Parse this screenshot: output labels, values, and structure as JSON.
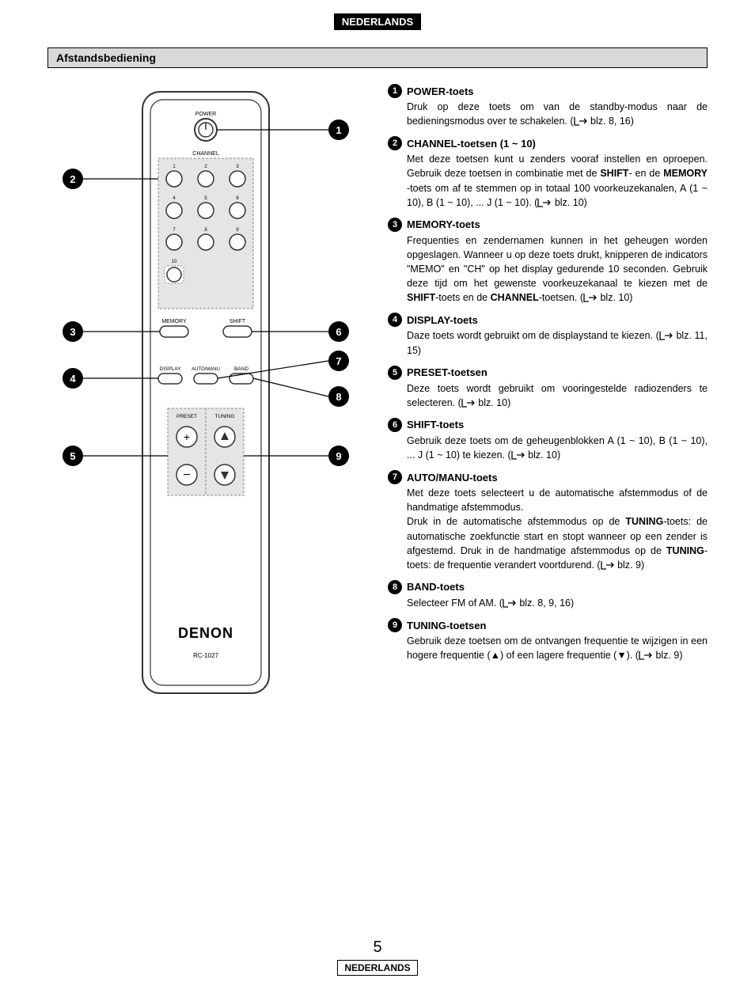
{
  "language_badge": "NEDERLANDS",
  "section_title": "Afstandsbediening",
  "page_number": "5",
  "bottom_badge": "NEDERLANDS",
  "remote": {
    "power_label": "POWER",
    "channel_label": "CHANNEL",
    "keys": [
      "1",
      "2",
      "3",
      "4",
      "5",
      "6",
      "7",
      "8",
      "9",
      "10"
    ],
    "memory_label": "MEMORY",
    "shift_label": "SHIFT",
    "display_label": "DISPLAY",
    "auto_label": "AUTO/MANU",
    "band_label": "BAND",
    "preset_label": "PRESET",
    "tuning_label": "TUNING",
    "brand": "DENON",
    "model": "RC-1027",
    "callouts": [
      "1",
      "2",
      "3",
      "4",
      "5",
      "6",
      "7",
      "8",
      "9"
    ]
  },
  "descriptions": [
    {
      "num": "1",
      "title": "POWER-toets",
      "body": "Druk op deze toets om van de standby-modus naar de bedieningsmodus over te schakelen. (☞ blz. 8, 16)"
    },
    {
      "num": "2",
      "title": "CHANNEL-toetsen (1 ~ 10)",
      "body": "Met deze toetsen kunt u zenders vooraf instellen en oproepen. Gebruik deze toetsen in combinatie met de <b>SHIFT</b>- en de <b>MEMORY</b> -toets om af te stemmen op in totaal 100 voorkeuzekanalen, A (1 ~ 10), B (1 ~ 10), ... J (1 ~ 10). (☞ blz. 10)"
    },
    {
      "num": "3",
      "title": "MEMORY-toets",
      "body": "Frequenties en zendernamen kunnen in het geheugen worden opgeslagen. Wanneer u op deze toets drukt, knipperen de indicators \"MEMO\" en \"CH\" op het display gedurende 10 seconden. Gebruik deze tijd om het gewenste voorkeuzekanaal te kiezen met de <b>SHIFT</b>-toets en de <b>CHANNEL</b>-toetsen. (☞ blz. 10)"
    },
    {
      "num": "4",
      "title": "DISPLAY-toets",
      "body": "Daze toets wordt gebruikt om de displaystand te kiezen. (☞ blz. 11, 15)"
    },
    {
      "num": "5",
      "title": "PRESET-toetsen",
      "body": "Deze toets wordt gebruikt om vooringestelde radiozenders te selecteren. (☞ blz. 10)"
    },
    {
      "num": "6",
      "title": "SHIFT-toets",
      "body": "Gebruik deze toets om de geheugenblokken A (1 ~ 10), B (1 ~ 10), ... J (1 ~ 10) te kiezen. (☞ blz. 10)"
    },
    {
      "num": "7",
      "title": "AUTO/MANU-toets",
      "body": "Met deze toets selecteert u de automatische afstemmodus of de handmatige afstemmodus.<br>Druk in de automatische afstemmodus op de <b>TUNING</b>-toets: de automatische zoekfunctie start en stopt wanneer op een zender is afgestemd. Druk in de handmatige afstemmodus op de <b>TUNING</b>-toets: de frequentie verandert voortdurend. (☞ blz. 9)"
    },
    {
      "num": "8",
      "title": "BAND-toets",
      "body": "Selecteer FM of AM. (☞ blz. 8, 9, 16)"
    },
    {
      "num": "9",
      "title": "TUNING-toetsen",
      "body": "Gebruik deze toetsen om de ontvangen frequentie te wijzigen in een hogere frequentie (▲) of een lagere frequentie (▼). (☞ blz. 9)"
    }
  ],
  "styling": {
    "page_bg": "#ffffff",
    "badge_bg": "#000000",
    "badge_fg": "#ffffff",
    "section_bg": "#d9d9d9",
    "remote_fill": "#e5e5e5",
    "remote_stroke": "#333333",
    "callout_bg": "#000000",
    "callout_fg": "#ffffff",
    "text_color": "#000000",
    "body_font_size": 12.5,
    "title_font_size": 13
  }
}
